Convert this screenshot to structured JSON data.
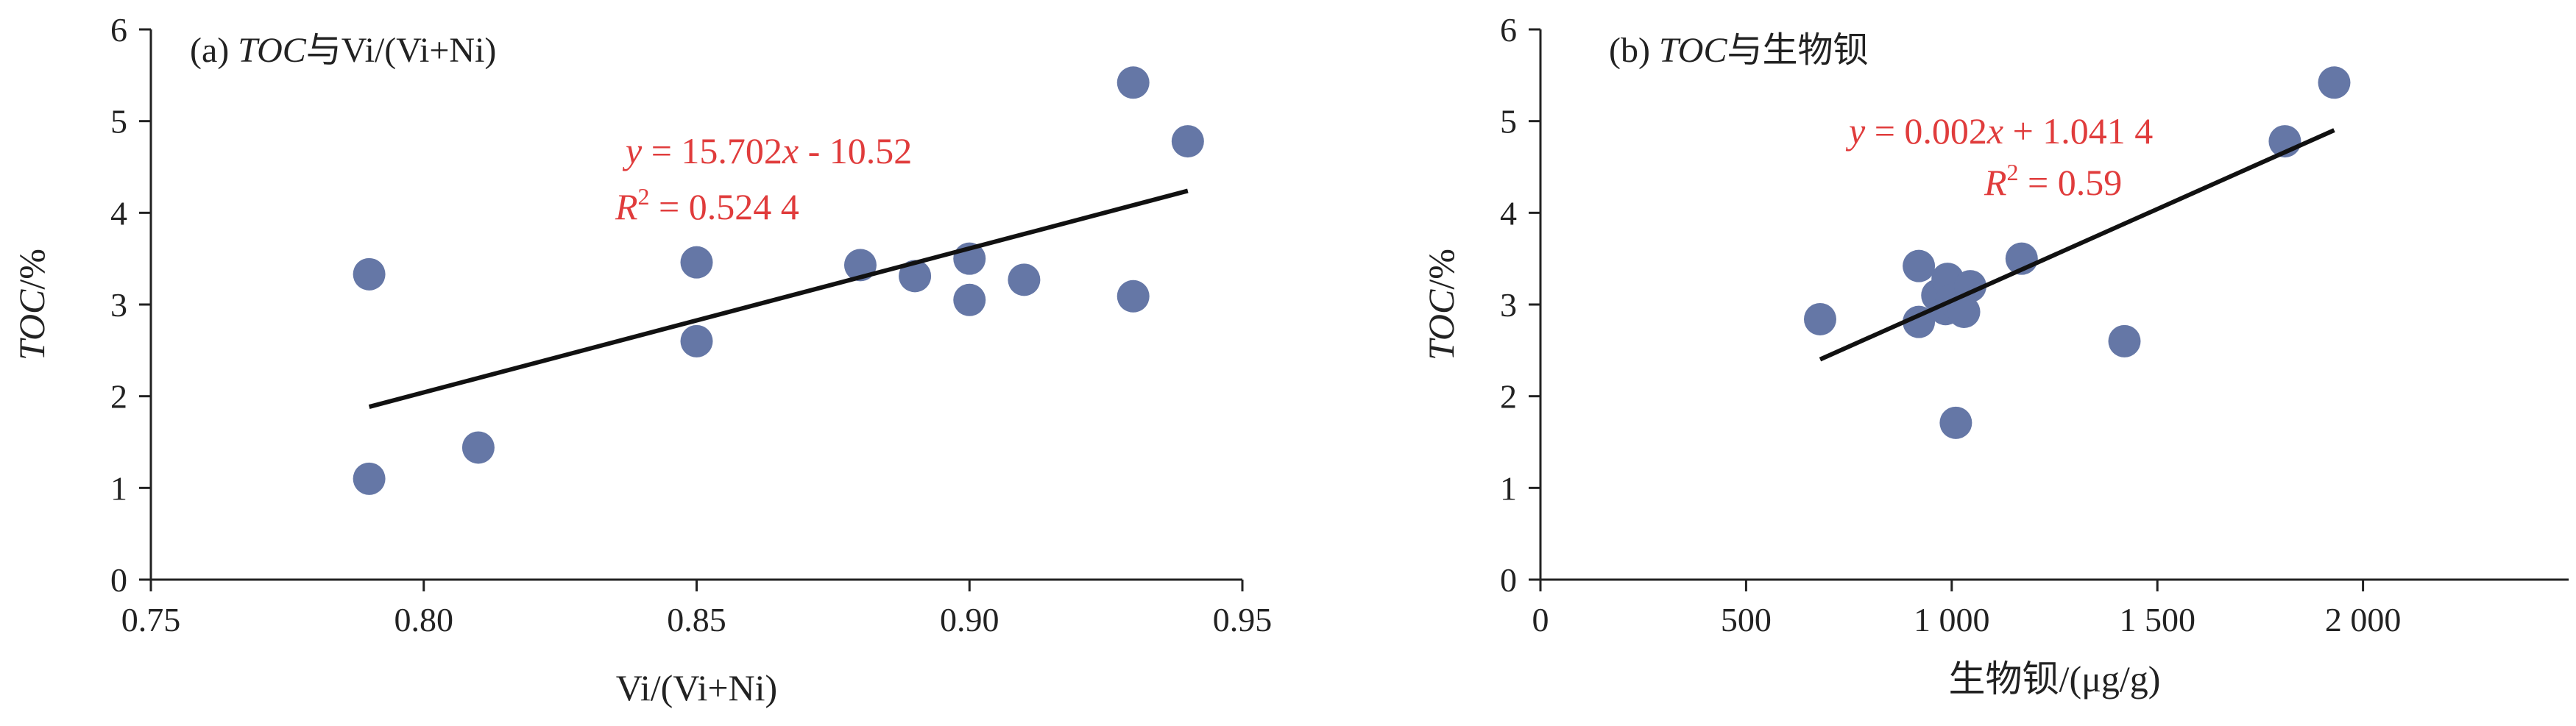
{
  "chart_data": [
    {
      "type": "scatter",
      "panel_title": {
        "prefix": "(a) ",
        "italic": "TOC",
        "suffix": "与Vi/(Vi+Ni)"
      },
      "xlabel": "Vi/(Vi+Ni)",
      "ylabel": {
        "italic": "TOC",
        "suffix": "/%"
      },
      "xlim": [
        0.75,
        0.95
      ],
      "ylim": [
        0,
        6
      ],
      "x_ticks": [
        0.75,
        0.8,
        0.85,
        0.9,
        0.95
      ],
      "x_tick_labels": [
        "0.75",
        "0.80",
        "0.85",
        "0.90",
        "0.95"
      ],
      "y_ticks": [
        0,
        1,
        2,
        3,
        4,
        5,
        6
      ],
      "y_tick_labels": [
        "0",
        "1",
        "2",
        "3",
        "4",
        "5",
        "6"
      ],
      "points": [
        [
          0.79,
          3.33
        ],
        [
          0.79,
          1.1
        ],
        [
          0.81,
          1.44
        ],
        [
          0.85,
          3.46
        ],
        [
          0.85,
          2.6
        ],
        [
          0.88,
          3.43
        ],
        [
          0.89,
          3.31
        ],
        [
          0.9,
          3.5
        ],
        [
          0.9,
          3.05
        ],
        [
          0.91,
          3.27
        ],
        [
          0.93,
          5.42
        ],
        [
          0.93,
          3.09
        ],
        [
          0.94,
          4.78
        ]
      ],
      "trendline": {
        "slope": 15.702,
        "intercept": -10.52,
        "x_range": [
          0.79,
          0.94
        ]
      },
      "equation": {
        "y": "y",
        "eq": " = 15.702",
        "x": "x",
        "rest": " - 10.52"
      },
      "r2": {
        "r": "R",
        "sup": "2",
        "rest": " = 0.524 4"
      },
      "colors": {
        "point": "#6577a6",
        "annotation": "#e03c3c",
        "trend": "#111111",
        "axis": "#222222"
      }
    },
    {
      "type": "scatter",
      "panel_title": {
        "prefix": "(b) ",
        "italic": "TOC",
        "suffix": "与生物钡"
      },
      "xlabel": "生物钡/(μg/g)",
      "ylabel": {
        "italic": "TOC",
        "suffix": "/%"
      },
      "xlim": [
        0,
        2500
      ],
      "ylim": [
        0,
        6
      ],
      "x_ticks": [
        0,
        500,
        1000,
        1500,
        2000
      ],
      "x_tick_labels": [
        "0",
        "500",
        "1 000",
        "1 500",
        "2 000"
      ],
      "y_ticks": [
        0,
        1,
        2,
        3,
        4,
        5,
        6
      ],
      "y_tick_labels": [
        "0",
        "1",
        "2",
        "3",
        "4",
        "5",
        "6"
      ],
      "points": [
        [
          680,
          2.84
        ],
        [
          920,
          3.42
        ],
        [
          920,
          2.81
        ],
        [
          965,
          3.1
        ],
        [
          985,
          2.95
        ],
        [
          990,
          3.28
        ],
        [
          1000,
          3.05
        ],
        [
          1010,
          1.71
        ],
        [
          1030,
          2.92
        ],
        [
          1045,
          3.2
        ],
        [
          1170,
          3.5
        ],
        [
          1420,
          2.6
        ],
        [
          1810,
          4.78
        ],
        [
          1930,
          5.42
        ]
      ],
      "trendline": {
        "slope": 0.002,
        "intercept": 1.0414,
        "x_range": [
          680,
          1930
        ]
      },
      "equation": {
        "y": "y",
        "eq": " = 0.002",
        "x": "x",
        "rest": " + 1.041 4"
      },
      "r2": {
        "r": "R",
        "sup": "2",
        "rest": " = 0.59"
      },
      "colors": {
        "point": "#6577a6",
        "annotation": "#e03c3c",
        "trend": "#111111",
        "axis": "#222222"
      }
    }
  ]
}
